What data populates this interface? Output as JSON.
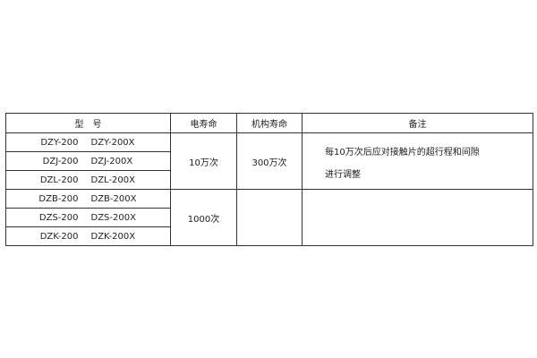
{
  "headers": [
    "型　号",
    "电寿命",
    "机构寿命",
    "备注"
  ],
  "rows": [
    {
      "model": "DZY-200",
      "model_x": "DZY-200X"
    },
    {
      "model": "DZJ-200",
      "model_x": "DZJ-200X"
    },
    {
      "model": "DZL-200",
      "model_x": "DZL-200X"
    },
    {
      "model": "DZB-200",
      "model_x": "DZB-200X"
    },
    {
      "model": "DZS-200",
      "model_x": "DZS-200X"
    },
    {
      "model": "DZK-200",
      "model_x": "DZK-200X"
    }
  ],
  "group1": {
    "electrical_life": "10万次",
    "mechanical_life": "300万次",
    "note_line1": "每10万次后应对接触片的超行程和间隙",
    "note_line2": "进行调整"
  },
  "group2": {
    "electrical_life": "1000次"
  }
}
